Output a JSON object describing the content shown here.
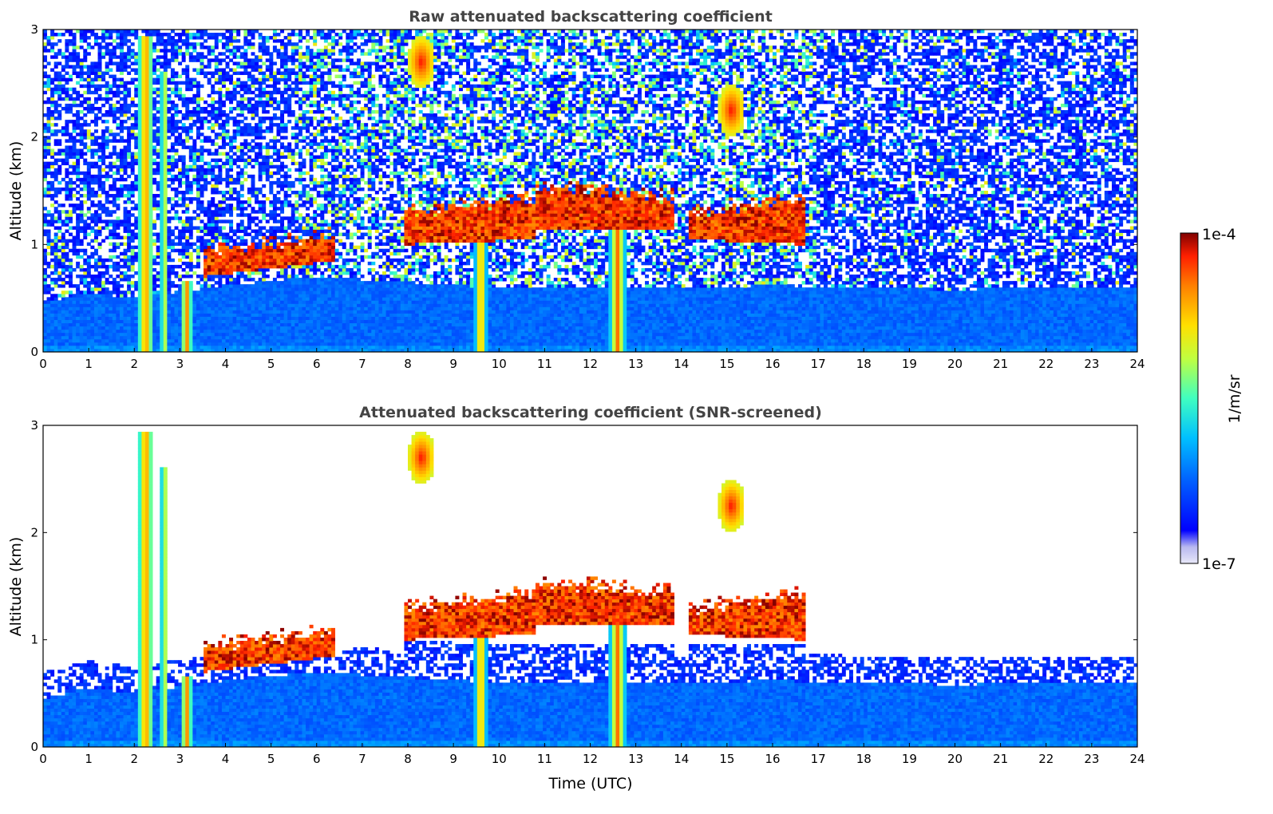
{
  "chart_data": [
    {
      "type": "heatmap",
      "title": "Raw attenuated backscattering coefficient",
      "xlabel": "",
      "ylabel": "Altitude (km)",
      "xlim": [
        0,
        24
      ],
      "ylim": [
        0,
        3
      ],
      "xticks": [
        "0",
        "1",
        "2",
        "3",
        "4",
        "5",
        "6",
        "7",
        "8",
        "9",
        "10",
        "11",
        "12",
        "13",
        "14",
        "15",
        "16",
        "17",
        "18",
        "19",
        "20",
        "21",
        "22",
        "23",
        "24"
      ],
      "yticks": [
        "0",
        "1",
        "2",
        "3"
      ],
      "screened": false,
      "features": {
        "boundary_layer_top_km": [
          [
            0,
            0.45
          ],
          [
            1,
            0.55
          ],
          [
            2,
            0.5
          ],
          [
            4,
            0.62
          ],
          [
            6,
            0.7
          ],
          [
            8,
            0.65
          ],
          [
            10,
            0.6
          ],
          [
            12,
            0.6
          ],
          [
            14,
            0.6
          ],
          [
            16,
            0.62
          ],
          [
            18,
            0.6
          ],
          [
            20,
            0.58
          ],
          [
            22,
            0.6
          ],
          [
            24,
            0.6
          ]
        ],
        "cloud_layers": [
          {
            "t_start": 3.5,
            "t_end": 6.4,
            "base_km": [
              0.7,
              0.85
            ],
            "top_km": [
              0.95,
              1.1
            ]
          },
          {
            "t_start": 7.9,
            "t_end": 10.8,
            "base_km": [
              1.0,
              1.05
            ],
            "top_km": [
              1.3,
              1.45
            ]
          },
          {
            "t_start": 10.8,
            "t_end": 13.8,
            "base_km": [
              1.15,
              1.15
            ],
            "top_km": [
              1.55,
              1.45
            ]
          },
          {
            "t_start": 14.2,
            "t_end": 16.7,
            "base_km": [
              1.05,
              1.0
            ],
            "top_km": [
              1.3,
              1.45
            ]
          }
        ],
        "precipitation_shafts": [
          {
            "t": 2.25,
            "width_h": 0.35,
            "top_km": 2.95
          },
          {
            "t": 2.65,
            "width_h": 0.12,
            "top_km": 2.6
          },
          {
            "t": 3.15,
            "width_h": 0.25,
            "top_km": 0.65
          },
          {
            "t": 9.6,
            "width_h": 0.25,
            "top_km": 1.3
          },
          {
            "t": 12.6,
            "width_h": 0.35,
            "top_km": 1.3
          }
        ],
        "high_cloud_patches": [
          {
            "t": 8.3,
            "alt_km": 2.7
          },
          {
            "t": 15.1,
            "alt_km": 2.25
          }
        ]
      }
    },
    {
      "type": "heatmap",
      "title": "Attenuated backscattering coefficient (SNR-screened)",
      "xlabel": "Time (UTC)",
      "ylabel": "Altitude (km)",
      "xlim": [
        0,
        24
      ],
      "ylim": [
        0,
        3
      ],
      "xticks": [
        "0",
        "1",
        "2",
        "3",
        "4",
        "5",
        "6",
        "7",
        "8",
        "9",
        "10",
        "11",
        "12",
        "13",
        "14",
        "15",
        "16",
        "17",
        "18",
        "19",
        "20",
        "21",
        "22",
        "23",
        "24"
      ],
      "yticks": [
        "0",
        "1",
        "2",
        "3"
      ],
      "screened": true
    }
  ],
  "colorbar": {
    "label": "1/m/sr",
    "max_label": "1e-4",
    "min_label": "1e-7",
    "scale": "log",
    "colormap": "jet",
    "colors": [
      "#e8e8f8",
      "#b8b8f0",
      "#0000ff",
      "#0060ff",
      "#00c0ff",
      "#40ffc0",
      "#c0ff40",
      "#ffe000",
      "#ff8000",
      "#ff2000",
      "#800000"
    ]
  }
}
